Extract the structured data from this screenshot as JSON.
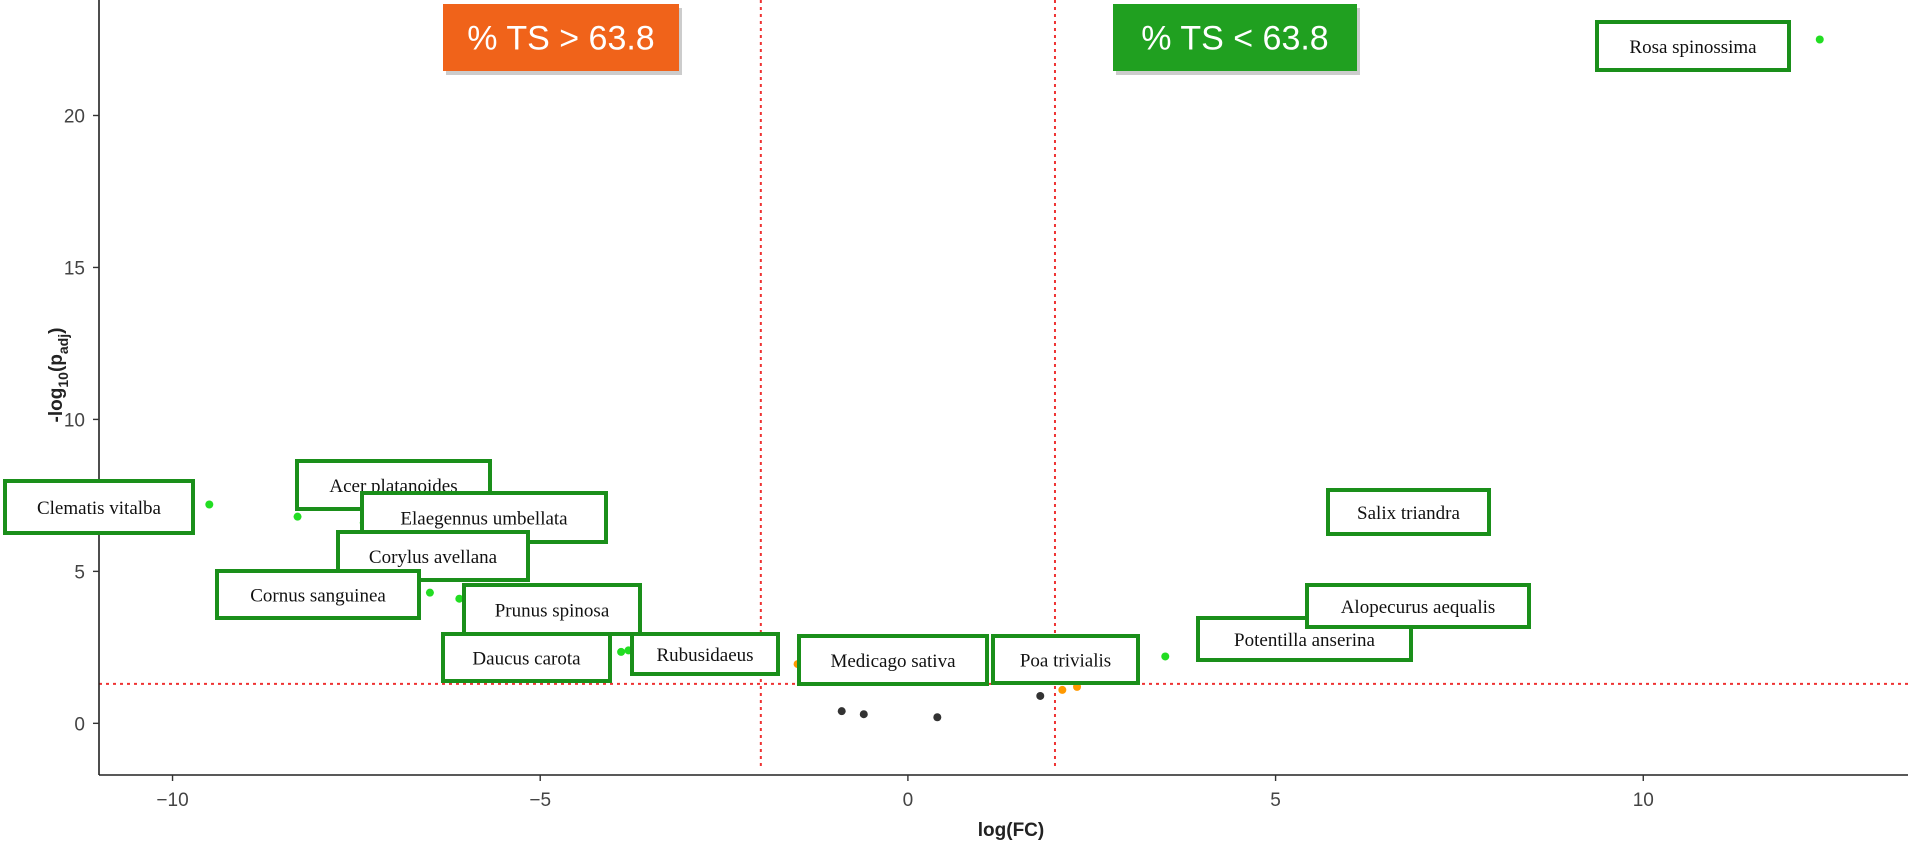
{
  "chart_data": {
    "type": "scatter",
    "title": "",
    "xlabel": "log(FC)",
    "ylabel_main": "-log",
    "ylabel_sub1": "10",
    "ylabel_paren_open": "(p",
    "ylabel_sub2": "adj",
    "ylabel_paren_close": ")",
    "xlim": [
      -11,
      13.6
    ],
    "ylim": [
      -1.7,
      23.8
    ],
    "xticks": [
      -10,
      -5,
      0,
      5,
      10
    ],
    "yticks": [
      0,
      5,
      10,
      15,
      20
    ],
    "grid": false,
    "thresholds": {
      "x": [
        -2,
        2
      ],
      "y": 1.3,
      "color": "#ee3333"
    },
    "annotations": [
      {
        "text": "% TS > 63.8",
        "color": "#f0631a",
        "side": "left"
      },
      {
        "text": "% TS < 63.8",
        "color": "#20a020",
        "side": "right"
      }
    ],
    "colors": {
      "significant": "#22dd22",
      "borderline": "#ff9900",
      "not_significant": "#333333",
      "label_border": "#1a8f1a"
    },
    "points": [
      {
        "x": -9.5,
        "y": 7.2,
        "status": "significant",
        "label": "Clematis vitalba"
      },
      {
        "x": -8.3,
        "y": 6.8,
        "status": "significant",
        "label": "Acer platanoides"
      },
      {
        "x": -7.4,
        "y": 6.6,
        "status": "significant",
        "label": "Elaegennus umbellata"
      },
      {
        "x": -7.7,
        "y": 5.7,
        "status": "significant",
        "label": "Corylus avellana"
      },
      {
        "x": -6.5,
        "y": 4.3,
        "status": "significant",
        "label": "Cornus sanguinea"
      },
      {
        "x": -6.1,
        "y": 4.1,
        "status": "significant",
        "label": "Prunus spinosa"
      },
      {
        "x": -3.8,
        "y": 2.4,
        "status": "significant",
        "label": "Daucus carota"
      },
      {
        "x": -3.9,
        "y": 2.35,
        "status": "significant",
        "label": ""
      },
      {
        "x": -1.5,
        "y": 1.95,
        "status": "borderline",
        "label": "Rubusidaeus"
      },
      {
        "x": -0.9,
        "y": 0.4,
        "status": "not_significant",
        "label": "Medicago sativa"
      },
      {
        "x": -0.6,
        "y": 0.3,
        "status": "not_significant",
        "label": ""
      },
      {
        "x": 0.4,
        "y": 0.2,
        "status": "not_significant",
        "label": ""
      },
      {
        "x": 1.8,
        "y": 0.9,
        "status": "not_significant",
        "label": ""
      },
      {
        "x": 2.1,
        "y": 1.1,
        "status": "borderline",
        "label": ""
      },
      {
        "x": 2.3,
        "y": 1.2,
        "status": "borderline",
        "label": ""
      },
      {
        "x": 3.5,
        "y": 2.2,
        "status": "significant",
        "label": "Poa trivialis"
      },
      {
        "x": 4.1,
        "y": 2.9,
        "status": "significant",
        "label": "Potentilla anserina"
      },
      {
        "x": 5.6,
        "y": 3.9,
        "status": "significant",
        "label": "Alopecurus aequalis"
      },
      {
        "x": 5.8,
        "y": 7.0,
        "status": "significant",
        "label": "Salix triandra"
      },
      {
        "x": 12.4,
        "y": 22.5,
        "status": "significant",
        "label": "Rosa spinossima"
      }
    ]
  }
}
